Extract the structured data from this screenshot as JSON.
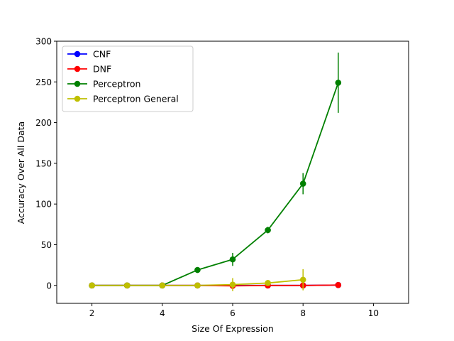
{
  "chart_data": {
    "type": "line",
    "xlabel": "Size Of Expression",
    "ylabel": "Accuracy Over All Data",
    "xlim": [
      1,
      11
    ],
    "ylim": [
      -22,
      300
    ],
    "xticks": [
      2,
      4,
      6,
      8,
      10
    ],
    "yticks": [
      0,
      50,
      100,
      150,
      200,
      250,
      300
    ],
    "grid": false,
    "legend_position": "top-left",
    "series": [
      {
        "name": "CNF",
        "color": "#0000ff",
        "x": [
          2,
          3,
          4,
          5,
          6,
          7,
          8,
          9
        ],
        "y": [
          0,
          0,
          0,
          0,
          0,
          0,
          0,
          0.5
        ],
        "err": [
          0,
          0,
          0,
          0,
          0,
          0,
          0,
          0
        ]
      },
      {
        "name": "DNF",
        "color": "#ff0000",
        "x": [
          2,
          3,
          4,
          5,
          6,
          7,
          8,
          9
        ],
        "y": [
          0,
          0,
          0,
          0,
          -0.5,
          0,
          0,
          0.5
        ],
        "err": [
          0,
          0,
          0,
          0,
          3,
          0,
          0,
          0
        ]
      },
      {
        "name": "Perceptron",
        "color": "#008000",
        "x": [
          2,
          3,
          4,
          5,
          6,
          7,
          8,
          9
        ],
        "y": [
          0,
          0,
          0,
          19,
          32,
          68,
          125,
          249
        ],
        "err": [
          0,
          0,
          0,
          1,
          8,
          4,
          13,
          37
        ]
      },
      {
        "name": "Perceptron General",
        "color": "#bfbf00",
        "x": [
          2,
          3,
          4,
          5,
          6,
          7,
          8
        ],
        "y": [
          0,
          0,
          0,
          0,
          1,
          3,
          7
        ],
        "err": [
          0,
          0,
          0,
          0,
          8,
          0,
          13
        ]
      }
    ]
  }
}
